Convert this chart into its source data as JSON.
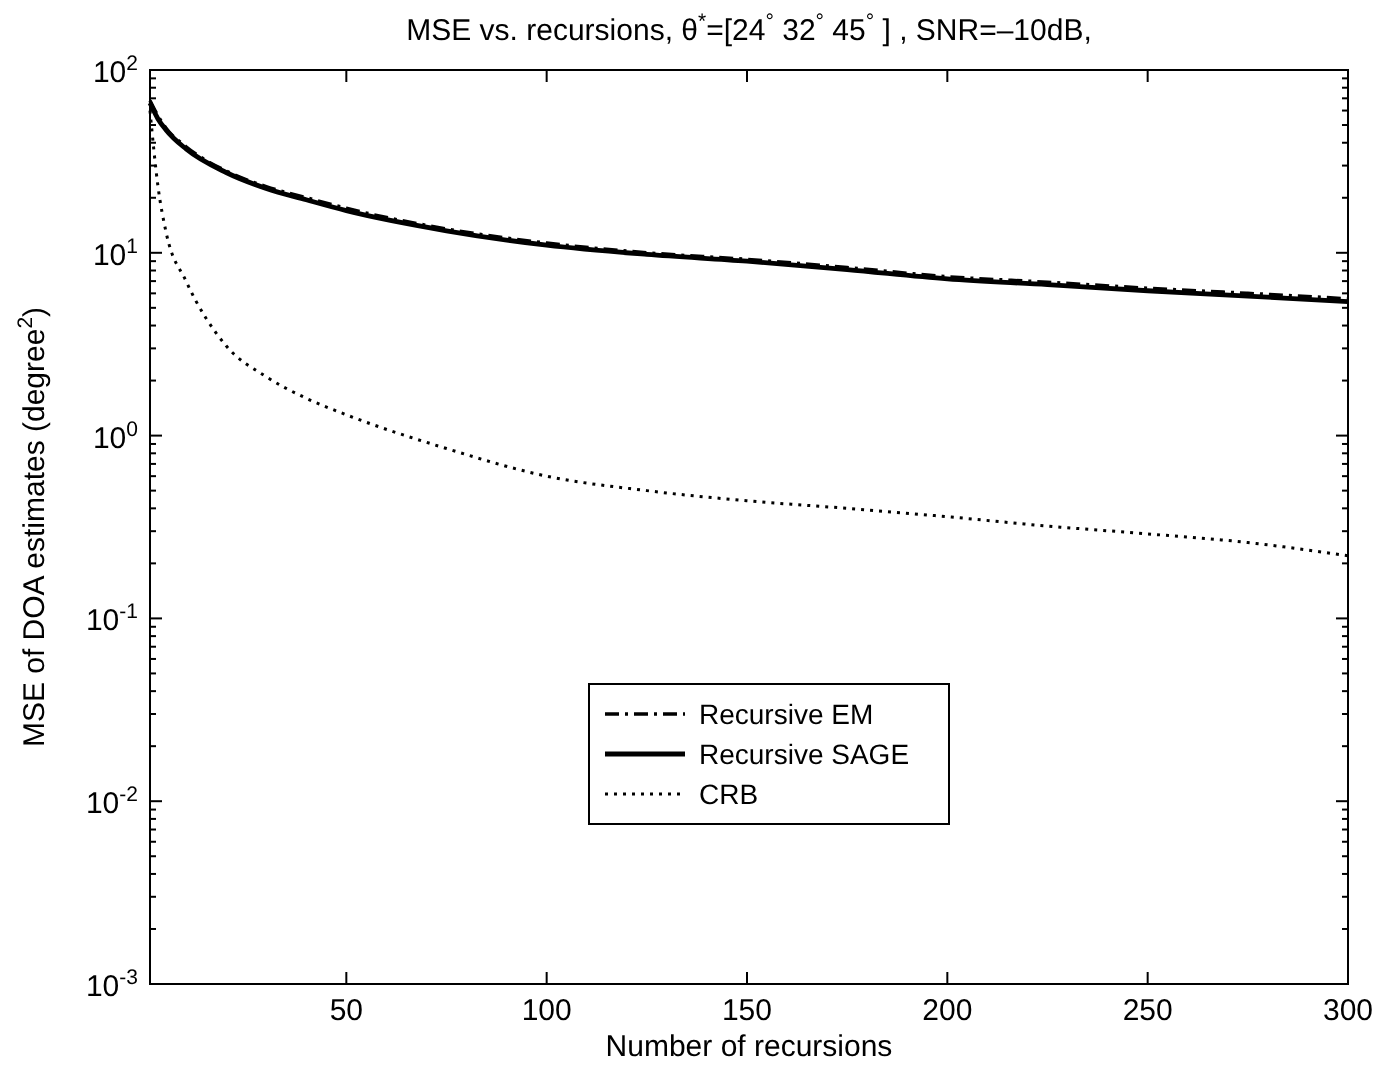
{
  "chart_data": {
    "type": "line",
    "title": "MSE vs. recursions, θ$^{*}$=[24$^{°}$ 32$^{°}$ 45$^{°}$ ] ,  SNR=–10dB,",
    "xlabel": "Number of recursions",
    "ylabel": "MSE of DOA estimates (degree$^{2}$)",
    "log": "y",
    "grid": false,
    "legend": "bottom",
    "xlim": [
      1,
      300
    ],
    "xticks": [
      50,
      100,
      150,
      200,
      250,
      300
    ],
    "ylim": [
      0.001,
      100
    ],
    "yticks": [
      {
        "value": 0.001,
        "label": "10$^{-3}$"
      },
      {
        "value": 0.01,
        "label": "10$^{-2}$"
      },
      {
        "value": 0.1,
        "label": "10$^{-1}$"
      },
      {
        "value": 1,
        "label": "10$^{0}$"
      },
      {
        "value": 10,
        "label": "10$^{1}$"
      },
      {
        "value": 100,
        "label": "10$^{2}$"
      }
    ],
    "x": [
      1,
      3,
      5,
      10,
      20,
      30,
      40,
      50,
      75,
      100,
      125,
      150,
      175,
      200,
      225,
      250,
      275,
      300
    ],
    "series": [
      {
        "name": "Recursive EM",
        "color": "#000000",
        "line_style": "dashed",
        "values": [
          68,
          56,
          48,
          38,
          28,
          23,
          20,
          17.5,
          13.5,
          11.3,
          10,
          9.2,
          8.3,
          7.4,
          6.9,
          6.4,
          6.0,
          5.6
        ]
      },
      {
        "name": "Recursive SAGE",
        "color": "#000000",
        "line_style": "solid",
        "values": [
          66,
          54,
          47,
          37,
          27.5,
          22.5,
          19.5,
          17,
          13.2,
          11,
          9.8,
          9,
          8.1,
          7.2,
          6.7,
          6.2,
          5.8,
          5.4
        ]
      },
      {
        "name": "CRB",
        "color": "#000000",
        "line_style": "dotted",
        "values": [
          60,
          23,
          13,
          7,
          3.1,
          2.1,
          1.6,
          1.3,
          0.85,
          0.6,
          0.5,
          0.44,
          0.4,
          0.36,
          0.32,
          0.29,
          0.26,
          0.22
        ]
      }
    ]
  }
}
